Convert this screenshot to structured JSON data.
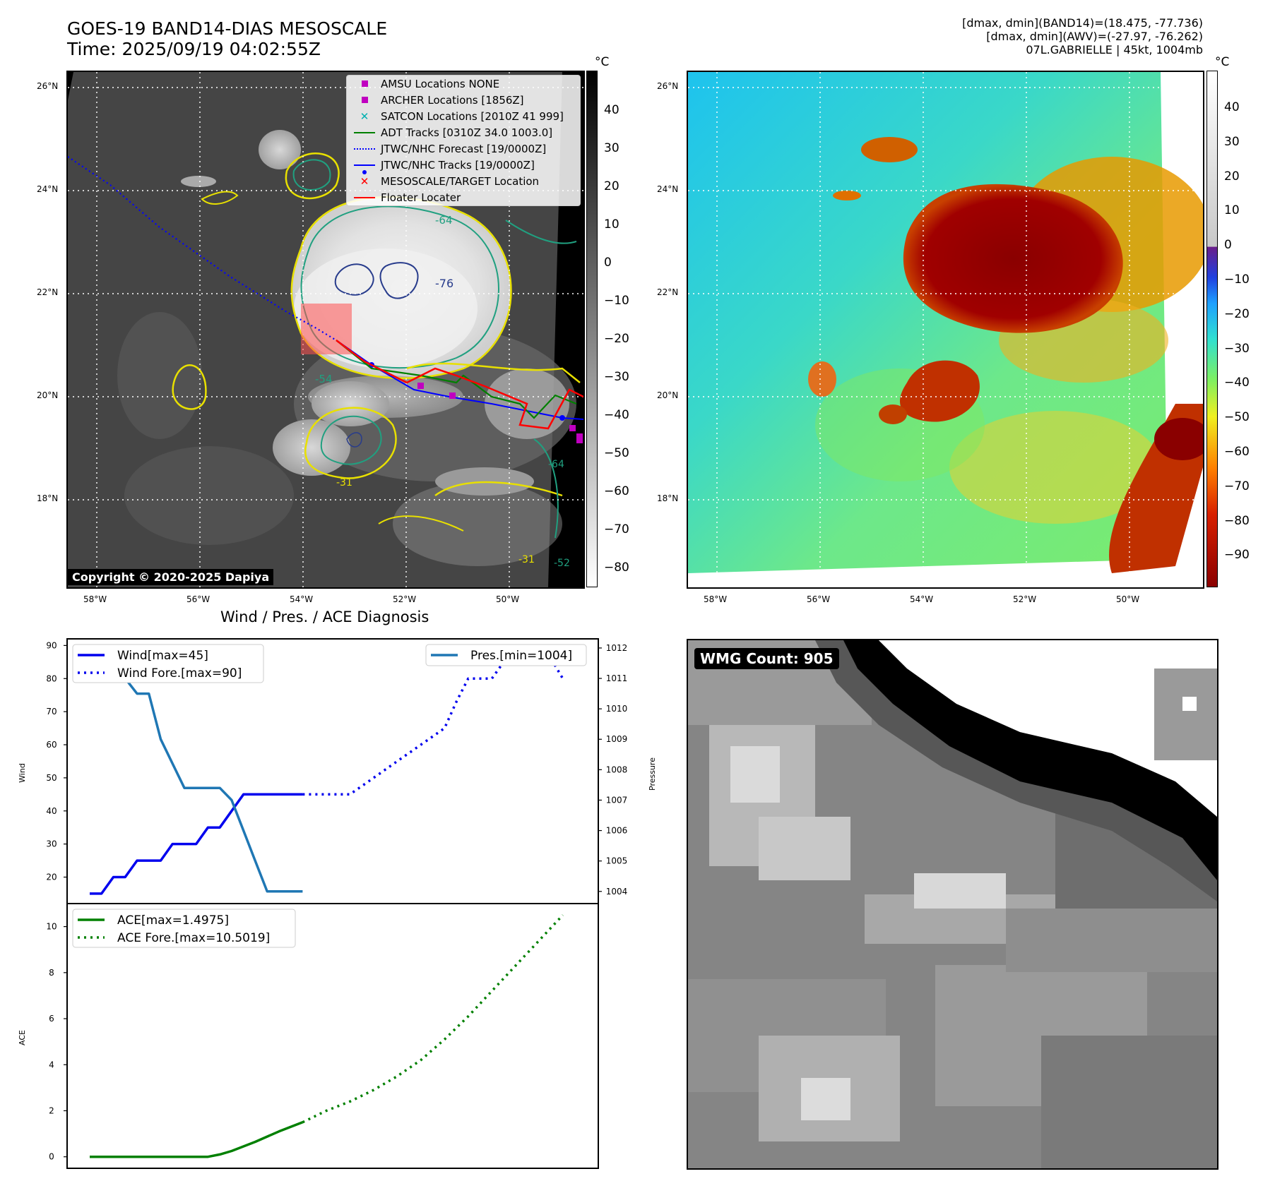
{
  "header": {
    "title_line1": "GOES-19 BAND14-DIAS MESOSCALE",
    "title_line2": "Time: 2025/09/19 04:02:55Z",
    "info_line1": "[dmax, dmin](BAND14)=(18.475, -77.736)",
    "info_line2": "[dmax, dmin](AWV)=(-27.97, -76.262)",
    "info_line3": "07L.GABRIELLE | 45kt, 1004mb"
  },
  "map": {
    "lat_labels": [
      "26°N",
      "24°N",
      "22°N",
      "20°N",
      "18°N"
    ],
    "lon_labels": [
      "58°W",
      "56°W",
      "54°W",
      "52°W",
      "50°W"
    ],
    "contour_labels": [
      "-64",
      "-76",
      "-54",
      "-31",
      "-64",
      "-52",
      "-31"
    ],
    "copyright": "Copyright © 2020-2025 Dapiya",
    "legend": [
      {
        "label": "AMSU Locations NONE",
        "symbol": "square",
        "color": "#c000c0"
      },
      {
        "label": "ARCHER Locations [1856Z]",
        "symbol": "square",
        "color": "#c000c0"
      },
      {
        "label": "SATCON Locations [2010Z 41 999]",
        "symbol": "x",
        "color": "#00b0b0"
      },
      {
        "label": "ADT Tracks [0310Z 34.0 1003.0]",
        "symbol": "line",
        "color": "#008000"
      },
      {
        "label": "JTWC/NHC Forecast [19/0000Z]",
        "symbol": "dotted",
        "color": "#0000ff"
      },
      {
        "label": "JTWC/NHC Tracks [19/0000Z]",
        "symbol": "line-dot",
        "color": "#0000ff"
      },
      {
        "label": "MESOSCALE/TARGET Location",
        "symbol": "x",
        "color": "#ff0000"
      },
      {
        "label": "Floater Locater",
        "symbol": "line",
        "color": "#ff0000"
      }
    ]
  },
  "colorbars": {
    "unit": "°C",
    "left_ticks": [
      "40",
      "30",
      "20",
      "10",
      "0",
      "−10",
      "−20",
      "−30",
      "−40",
      "−50",
      "−60",
      "−70",
      "−80"
    ],
    "right_ticks": [
      "40",
      "30",
      "20",
      "10",
      "0",
      "−10",
      "−20",
      "−30",
      "−40",
      "−50",
      "−60",
      "−70",
      "−80",
      "−90"
    ]
  },
  "diag": {
    "title": "Wind / Pres. / ACE Diagnosis",
    "wmg_label": "WMG Count: 905"
  },
  "chart_data": [
    {
      "type": "line",
      "title": "Wind / Pres. / ACE Diagnosis",
      "ylabel": "Wind",
      "y2label": "Pressure",
      "ylim": [
        12,
        92
      ],
      "y2lim": [
        1003.6,
        1012.3
      ],
      "yticks": [
        "20",
        "30",
        "40",
        "50",
        "60",
        "70",
        "80",
        "90"
      ],
      "y2ticks": [
        "1004",
        "1005",
        "1006",
        "1007",
        "1008",
        "1009",
        "1010",
        "1011",
        "1012"
      ],
      "xlim": [
        0,
        21.5
      ],
      "series": [
        {
          "name": "Wind[max=45]",
          "color": "#0000ee",
          "style": "solid",
          "axis": "left",
          "x": [
            0,
            0.5,
            1,
            1.5,
            2,
            2.5,
            3,
            3.5,
            4,
            4.5,
            5,
            5.5,
            6,
            6.5,
            7,
            7.5,
            8,
            8.5,
            9
          ],
          "y": [
            15,
            15,
            20,
            20,
            25,
            25,
            25,
            30,
            30,
            30,
            35,
            35,
            40,
            45,
            45,
            45,
            45,
            45,
            45
          ]
        },
        {
          "name": "Wind Fore.[max=90]",
          "color": "#0000ee",
          "style": "dotted",
          "axis": "left",
          "x": [
            9,
            10.5,
            11,
            12,
            13,
            14,
            15,
            15.5,
            16,
            16.5,
            17,
            17.5,
            18,
            18.5,
            19,
            19.5,
            20
          ],
          "y": [
            45,
            45,
            45,
            50,
            55,
            60,
            65,
            73,
            80,
            80,
            80,
            85,
            90,
            87,
            85,
            86,
            80
          ]
        },
        {
          "name": "Pres.[min=1004]",
          "color": "#1f77b4",
          "style": "solid",
          "axis": "right",
          "x": [
            0,
            0.5,
            1,
            1.5,
            2,
            2.5,
            3,
            4,
            5,
            5.5,
            6,
            6.5,
            7,
            7.5,
            8,
            8.5,
            9
          ],
          "y": [
            1012,
            1012,
            1011,
            1011,
            1010.5,
            1010.5,
            1009,
            1007.4,
            1007.4,
            1007.4,
            1007,
            1006,
            1005,
            1004,
            1004,
            1004,
            1004
          ]
        }
      ]
    },
    {
      "type": "line",
      "ylabel": "ACE",
      "ylim": [
        -0.5,
        11.0
      ],
      "yticks": [
        "0",
        "2",
        "4",
        "6",
        "8",
        "10"
      ],
      "xlim": [
        0,
        21.5
      ],
      "series": [
        {
          "name": "ACE[max=1.4975]",
          "color": "#008000",
          "style": "solid",
          "x": [
            0,
            1,
            2,
            3,
            4,
            5,
            5.5,
            6,
            7,
            8,
            9
          ],
          "y": [
            0,
            0,
            0,
            0,
            0,
            0,
            0.1,
            0.25,
            0.65,
            1.1,
            1.5
          ]
        },
        {
          "name": "ACE Fore.[max=10.5019]",
          "color": "#008000",
          "style": "dotted",
          "x": [
            9,
            10,
            11,
            12,
            13,
            14,
            15,
            16,
            17,
            18,
            19,
            20
          ],
          "y": [
            1.5,
            2.0,
            2.4,
            2.9,
            3.5,
            4.2,
            5.1,
            6.1,
            7.2,
            8.3,
            9.4,
            10.5
          ]
        }
      ]
    }
  ]
}
